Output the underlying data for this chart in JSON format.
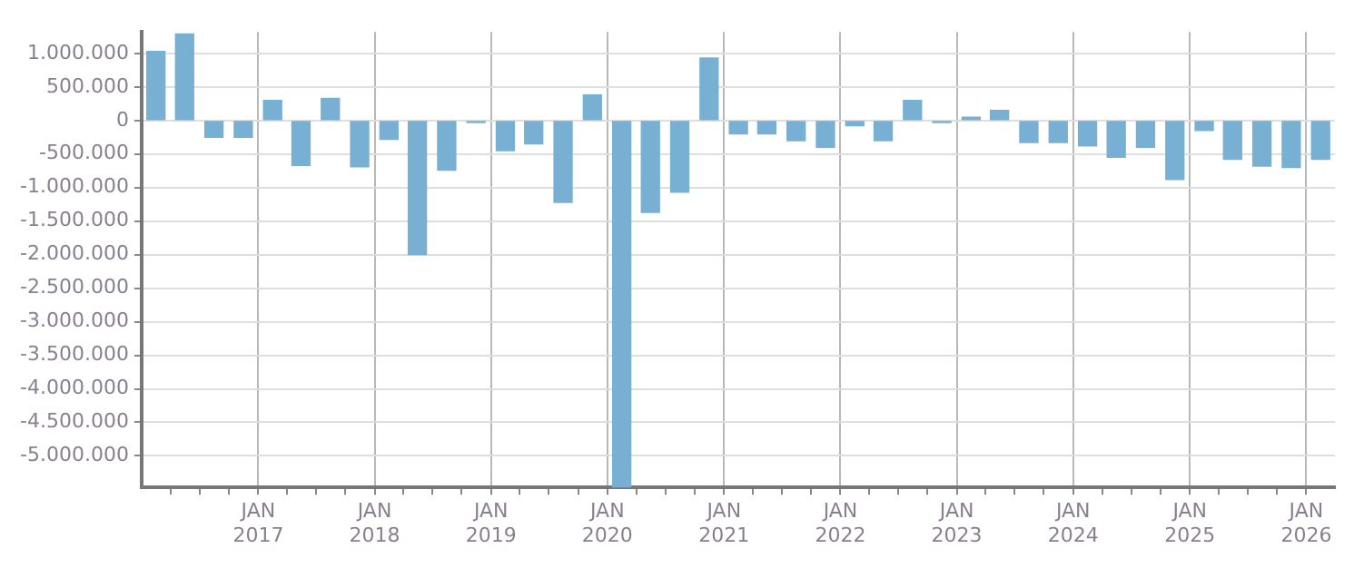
{
  "chart_data": {
    "type": "bar",
    "x": [
      "2016-02-15",
      "2016-05-15",
      "2016-08-15",
      "2016-11-15",
      "2017-02-15",
      "2017-05-15",
      "2017-08-15",
      "2017-11-15",
      "2018-02-15",
      "2018-05-15",
      "2018-08-15",
      "2018-11-15",
      "2019-02-15",
      "2019-05-15",
      "2019-08-15",
      "2019-11-15",
      "2020-02-15",
      "2020-05-15",
      "2020-08-15",
      "2020-11-15",
      "2021-02-15",
      "2021-05-15",
      "2021-08-15",
      "2021-11-15",
      "2022-02-15",
      "2022-05-15",
      "2022-08-15",
      "2022-11-15",
      "2023-02-15",
      "2023-05-15",
      "2023-08-15",
      "2023-11-15",
      "2024-02-15",
      "2024-05-15",
      "2024-08-15",
      "2024-11-15",
      "2025-02-15",
      "2025-05-15",
      "2025-08-15",
      "2025-11-15",
      "2026-02-15"
    ],
    "values": [
      1030000,
      1290000,
      -250000,
      -250000,
      300000,
      -670000,
      330000,
      -690000,
      -280000,
      -2000000,
      -740000,
      -30000,
      -450000,
      -350000,
      -1220000,
      380000,
      -5470000,
      -1370000,
      -1070000,
      930000,
      -200000,
      -200000,
      -300000,
      -400000,
      -80000,
      -300000,
      300000,
      -30000,
      50000,
      150000,
      -330000,
      -330000,
      -380000,
      -550000,
      -400000,
      -880000,
      -150000,
      -580000,
      -680000,
      -700000,
      -580000
    ],
    "color": "#78b0d4",
    "xlim": [
      "2016-01-01",
      "2026-04-01"
    ],
    "xticks": [
      {
        "value": "2016-04-01",
        "label": null
      },
      {
        "value": "2016-07-01",
        "label": null
      },
      {
        "value": "2016-10-01",
        "label": null
      },
      {
        "value": "2017-01-01",
        "label": "JAN 2017"
      },
      {
        "value": "2017-04-01",
        "label": null
      },
      {
        "value": "2017-07-01",
        "label": null
      },
      {
        "value": "2017-10-01",
        "label": null
      },
      {
        "value": "2018-01-01",
        "label": "JAN 2018"
      },
      {
        "value": "2018-04-01",
        "label": null
      },
      {
        "value": "2018-07-01",
        "label": null
      },
      {
        "value": "2018-10-01",
        "label": null
      },
      {
        "value": "2019-01-01",
        "label": "JAN 2019"
      },
      {
        "value": "2019-04-01",
        "label": null
      },
      {
        "value": "2019-07-01",
        "label": null
      },
      {
        "value": "2019-10-01",
        "label": null
      },
      {
        "value": "2020-01-01",
        "label": "JAN 2020"
      },
      {
        "value": "2020-04-01",
        "label": null
      },
      {
        "value": "2020-07-01",
        "label": null
      },
      {
        "value": "2020-10-01",
        "label": null
      },
      {
        "value": "2021-01-01",
        "label": "JAN 2021"
      },
      {
        "value": "2021-04-01",
        "label": null
      },
      {
        "value": "2021-07-01",
        "label": null
      },
      {
        "value": "2021-10-01",
        "label": null
      },
      {
        "value": "2022-01-01",
        "label": "JAN 2022"
      },
      {
        "value": "2022-04-01",
        "label": null
      },
      {
        "value": "2022-07-01",
        "label": null
      },
      {
        "value": "2022-10-01",
        "label": null
      },
      {
        "value": "2023-01-01",
        "label": "JAN 2023"
      },
      {
        "value": "2023-04-01",
        "label": null
      },
      {
        "value": "2023-07-01",
        "label": null
      },
      {
        "value": "2023-10-01",
        "label": null
      },
      {
        "value": "2024-01-01",
        "label": "JAN 2024"
      },
      {
        "value": "2024-04-01",
        "label": null
      },
      {
        "value": "2024-07-01",
        "label": null
      },
      {
        "value": "2024-10-01",
        "label": null
      },
      {
        "value": "2025-01-01",
        "label": "JAN 2025"
      },
      {
        "value": "2025-04-01",
        "label": null
      },
      {
        "value": "2025-07-01",
        "label": null
      },
      {
        "value": "2025-10-01",
        "label": null
      },
      {
        "value": "2026-01-01",
        "label": "JAN 2026"
      }
    ],
    "ylim": [
      -5470000,
      1320000
    ],
    "yticks": [
      {
        "value": 1000000,
        "label": "1.000.000"
      },
      {
        "value": 500000,
        "label": "500.000"
      },
      {
        "value": 0,
        "label": "0"
      },
      {
        "value": -500000,
        "label": "-500.000"
      },
      {
        "value": -1000000,
        "label": "-1.000.000"
      },
      {
        "value": -1500000,
        "label": "-1.500.000"
      },
      {
        "value": -2000000,
        "label": "-2.000.000"
      },
      {
        "value": -2500000,
        "label": "-2.500.000"
      },
      {
        "value": -3000000,
        "label": "-3.000.000"
      },
      {
        "value": -3500000,
        "label": "-3.500.000"
      },
      {
        "value": -4000000,
        "label": "-4.000.000"
      },
      {
        "value": -4500000,
        "label": "-4.500.000"
      },
      {
        "value": -5000000,
        "label": "-5.000.000"
      }
    ],
    "grid": true,
    "legend": false
  }
}
